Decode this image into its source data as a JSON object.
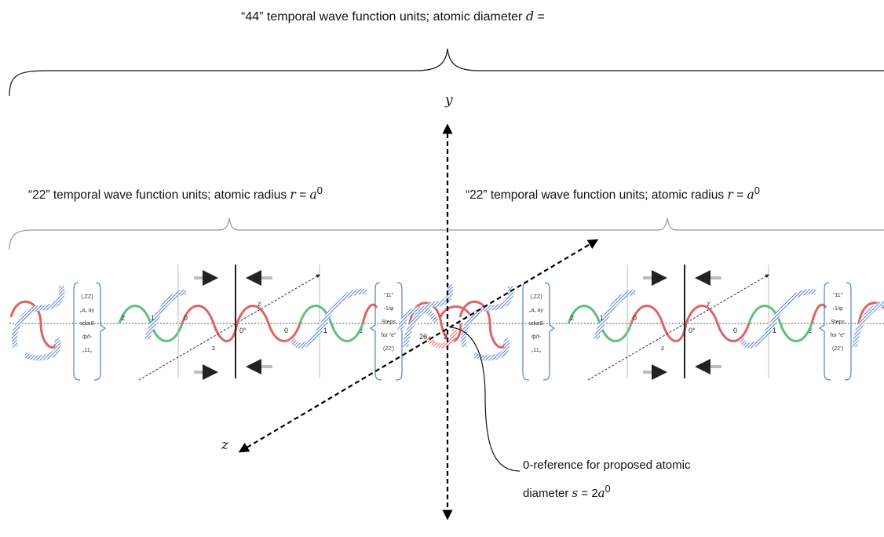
{
  "title": {
    "prefix": "“44” temporal wave function units; atomic diameter ",
    "var": "d",
    "suffix": " ="
  },
  "left_label": {
    "prefix": "“22” temporal wave function units; atomic radius ",
    "var": "r",
    "eq": " = ",
    "base": "a",
    "sup": "0"
  },
  "right_label": {
    "prefix": "“22” temporal wave function units; atomic radius ",
    "var": "r",
    "eq": " = ",
    "base": "a",
    "sup": "0"
  },
  "axes": {
    "y": "y",
    "z": "z"
  },
  "annotation": {
    "line1": "0-reference for proposed atomic",
    "line2_prefix": "diameter ",
    "line2_var": "s",
    "line2_eq": " = 2",
    "line2_base": "a",
    "line2_sup": "0"
  },
  "panel_text": {
    "box_left": [
      "(,ZZ)",
      "„a„ ay",
      "sdəɪS",
      "ф/t-",
      "„11„"
    ],
    "box_right": [
      "“11”",
      "-1/φ",
      "Steps",
      "for “e”",
      "(22’)"
    ],
    "z_label": "z",
    "ticks": [
      "2",
      "1",
      "0",
      "0°",
      "0",
      "1",
      "2"
    ],
    "center_ticks": [
      "2θ",
      "2"
    ]
  },
  "colors": {
    "red": "#e06363",
    "green": "#5ec07a",
    "blue": "#5b7fd6",
    "gray": "#bdbdbd",
    "bracket": "#4f82c4"
  }
}
